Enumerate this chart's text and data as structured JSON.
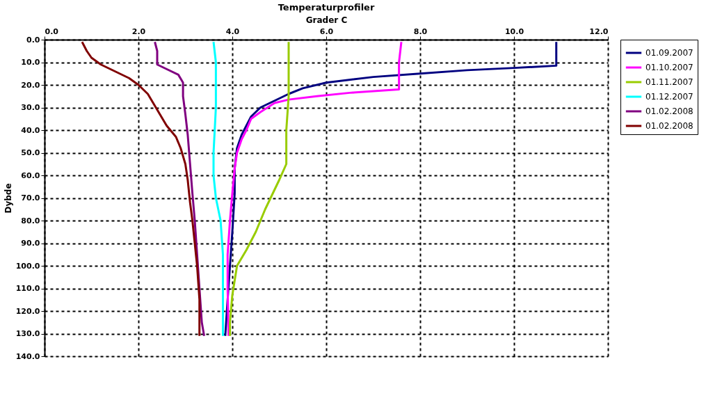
{
  "chart_data": {
    "type": "line",
    "title": "Temperaturprofiler",
    "xlabel": "Grader C",
    "ylabel": "Dybde",
    "xlim": [
      0,
      12
    ],
    "xticks": [
      {
        "value": 0,
        "label": "0.0"
      },
      {
        "value": 2,
        "label": "2.0"
      },
      {
        "value": 4,
        "label": "4.0"
      },
      {
        "value": 6,
        "label": "6.0"
      },
      {
        "value": 8,
        "label": "8.0"
      },
      {
        "value": 10,
        "label": "10.0"
      },
      {
        "value": 12,
        "label": "12.0"
      }
    ],
    "ylim": [
      140,
      0
    ],
    "yticks": [
      {
        "value": 0,
        "label": "0.0"
      },
      {
        "value": 10,
        "label": "10.0"
      },
      {
        "value": 20,
        "label": "20.0"
      },
      {
        "value": 30,
        "label": "30.0"
      },
      {
        "value": 40,
        "label": "40.0"
      },
      {
        "value": 50,
        "label": "50.0"
      },
      {
        "value": 60,
        "label": "60.0"
      },
      {
        "value": 70,
        "label": "70.0"
      },
      {
        "value": 80,
        "label": "80.0"
      },
      {
        "value": 90,
        "label": "90.0"
      },
      {
        "value": 100,
        "label": "100.0"
      },
      {
        "value": 110,
        "label": "110.0"
      },
      {
        "value": 120,
        "label": "120.0"
      },
      {
        "value": 130,
        "label": "130.0"
      },
      {
        "value": 140,
        "label": "140.0"
      }
    ],
    "grid": true,
    "legend": "right",
    "marker": "none",
    "line_style": "solid",
    "series": [
      {
        "name": "01.09.2007",
        "color": "#000080",
        "x": [
          10.9,
          10.9,
          10.0,
          9.0,
          8.0,
          7.0,
          6.0,
          5.5,
          5.2,
          4.9,
          4.6,
          4.4,
          4.3,
          4.2,
          4.1,
          4.05,
          4.05,
          4.0,
          3.95,
          3.9,
          3.85
        ],
        "values": [
          1,
          11.5,
          12.5,
          13.5,
          15,
          16.5,
          19,
          21.5,
          24,
          27,
          30,
          34,
          38,
          42,
          48,
          57,
          68,
          85,
          100,
          115,
          131
        ]
      },
      {
        "name": "01.10.2007",
        "color": "#ff00ff",
        "x": [
          7.6,
          7.55,
          7.55,
          6.5,
          5.8,
          5.2,
          4.9,
          4.6,
          4.4,
          4.3,
          4.2,
          4.1,
          4.05,
          4.0,
          3.95,
          3.9,
          3.9,
          3.92
        ],
        "values": [
          1,
          10,
          22,
          23.5,
          25,
          26.5,
          28,
          32,
          35,
          40,
          44,
          50,
          57,
          68,
          80,
          95,
          110,
          131
        ]
      },
      {
        "name": "01.11.2007",
        "color": "#99cc00",
        "x": [
          5.2,
          5.2,
          5.2,
          5.15,
          5.15,
          5.0,
          4.7,
          4.5,
          4.3,
          4.1,
          4.0,
          3.95,
          3.95
        ],
        "values": [
          1,
          10,
          25,
          40,
          55,
          62,
          75,
          85,
          93,
          100,
          113,
          125,
          131
        ]
      },
      {
        "name": "01.12.2007",
        "color": "#00ffff",
        "x": [
          3.6,
          3.65,
          3.65,
          3.6,
          3.6,
          3.65,
          3.75,
          3.8,
          3.8,
          3.8
        ],
        "values": [
          1,
          10,
          30,
          50,
          60,
          70,
          80,
          95,
          110,
          131
        ]
      },
      {
        "name": "01.02.2008",
        "color": "#800080",
        "x": [
          2.35,
          2.4,
          2.4,
          2.6,
          2.85,
          2.95,
          2.95,
          3.0,
          3.05,
          3.1,
          3.15,
          3.2,
          3.25,
          3.3,
          3.35,
          3.4
        ],
        "values": [
          1,
          5,
          11,
          13,
          15.5,
          19,
          25,
          33,
          42,
          55,
          68,
          80,
          95,
          110,
          125,
          131
        ]
      },
      {
        "name": "01.02.2008",
        "color": "#800000",
        "x": [
          0.8,
          0.9,
          1.0,
          1.2,
          1.5,
          1.8,
          2.0,
          2.2,
          2.4,
          2.6,
          2.8,
          2.9,
          3.0,
          3.05,
          3.1,
          3.15,
          3.2,
          3.25,
          3.3,
          3.3
        ],
        "values": [
          1,
          5,
          8,
          11,
          14,
          17,
          20,
          24,
          31,
          38,
          43,
          48,
          55,
          62,
          72,
          80,
          90,
          100,
          115,
          131
        ]
      }
    ]
  }
}
